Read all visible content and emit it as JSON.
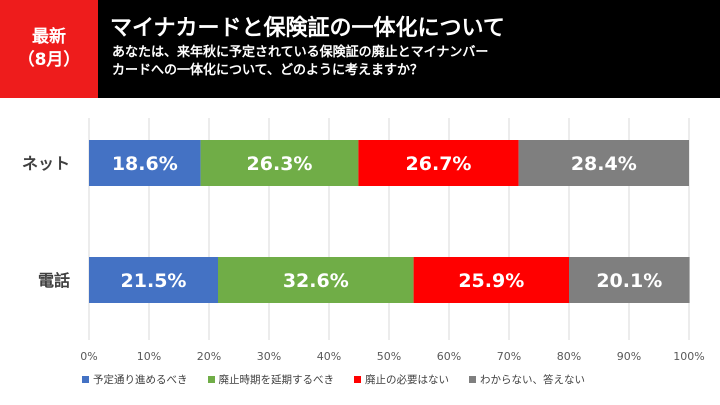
{
  "header": {
    "badge_line1": "最新",
    "badge_line2": "（8月）",
    "title": "マイナカードと保険証の一体化について",
    "subtitle_line1": "あなたは、来年秋に予定されている保険証の廃止とマイナンバー",
    "subtitle_line2": "カードへの一体化について、どのように考えますか？"
  },
  "colors": {
    "badge": "#ee1c1c",
    "header_bg": "#000000",
    "series": [
      "#4472c4",
      "#70ad47",
      "#ff0000",
      "#7f7f7f"
    ]
  },
  "chart_data": {
    "type": "bar",
    "orientation": "horizontal",
    "stacked": true,
    "categories": [
      "ネット",
      "電話"
    ],
    "series": [
      {
        "name": "予定通り進めるべき",
        "values": [
          18.6,
          21.5
        ],
        "labels": [
          "18.6%",
          "21.5%"
        ]
      },
      {
        "name": "廃止時期を延期するべき",
        "values": [
          26.3,
          32.6
        ],
        "labels": [
          "26.3%",
          "32.6%"
        ]
      },
      {
        "name": "廃止の必要はない",
        "values": [
          26.7,
          25.9
        ],
        "labels": [
          "26.7%",
          "25.9%"
        ]
      },
      {
        "name": "わからない、答えない",
        "values": [
          28.4,
          20.1
        ],
        "labels": [
          "28.4%",
          "20.1%"
        ]
      }
    ],
    "xlim": [
      0,
      100
    ],
    "xticks": [
      "0%",
      "10%",
      "20%",
      "30%",
      "40%",
      "50%",
      "60%",
      "70%",
      "80%",
      "90%",
      "100%"
    ],
    "grid": true,
    "legend_position": "bottom"
  }
}
